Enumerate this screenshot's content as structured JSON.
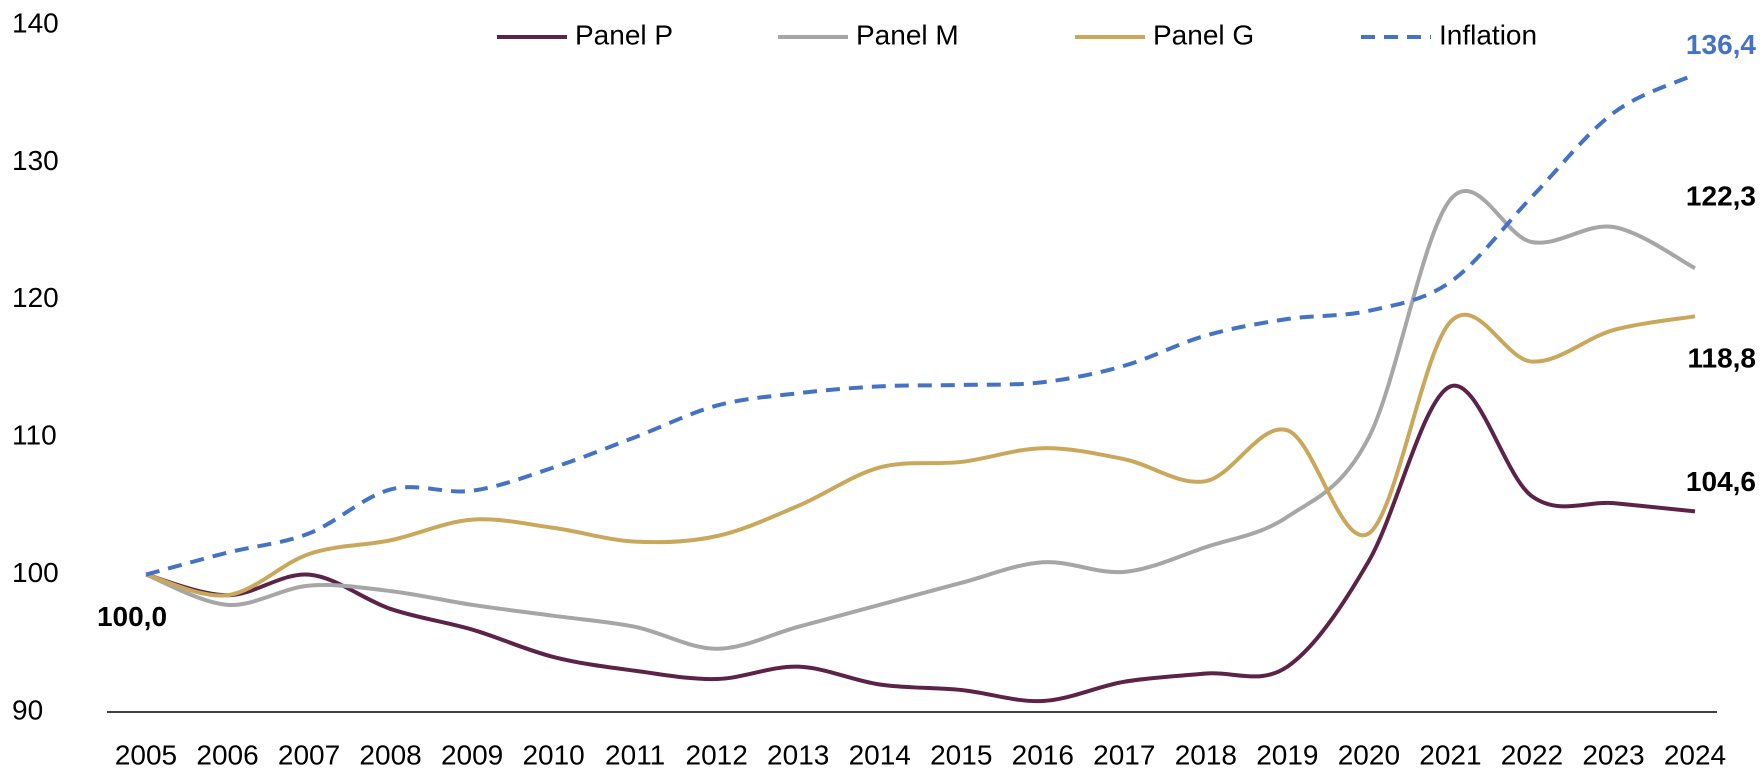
{
  "chart_data": {
    "type": "line",
    "categories": [
      "2005",
      "2006",
      "2007",
      "2008",
      "2009",
      "2010",
      "2011",
      "2012",
      "2013",
      "2014",
      "2015",
      "2016",
      "2017",
      "2018",
      "2019",
      "2020",
      "2021",
      "2022",
      "2023",
      "2024"
    ],
    "series": [
      {
        "name": "Panel P",
        "color": "#5c2349",
        "dash": false,
        "values": [
          100,
          98.5,
          100,
          97.5,
          96,
          94,
          93,
          92.4,
          93.3,
          92,
          91.6,
          90.8,
          92.2,
          92.8,
          93.3,
          101,
          113.7,
          105.7,
          105.2,
          104.6
        ],
        "value_labels": [
          "100,0",
          null,
          null,
          null,
          null,
          null,
          null,
          null,
          null,
          null,
          null,
          null,
          null,
          null,
          null,
          null,
          null,
          null,
          null,
          "104,6"
        ]
      },
      {
        "name": "Panel M",
        "color": "#a6a6a6",
        "dash": false,
        "values": [
          100,
          97.8,
          99.2,
          98.8,
          97.8,
          97,
          96.2,
          94.6,
          96.2,
          97.8,
          99.4,
          100.9,
          100.2,
          102,
          104.2,
          110,
          127.3,
          124.2,
          125.3,
          122.3
        ],
        "value_labels": [
          null,
          null,
          null,
          null,
          null,
          null,
          null,
          null,
          null,
          null,
          null,
          null,
          null,
          null,
          null,
          null,
          null,
          null,
          null,
          "122,3"
        ]
      },
      {
        "name": "Panel G",
        "color": "#c9a85c",
        "dash": false,
        "values": [
          100,
          98.5,
          101.5,
          102.5,
          104,
          103.4,
          102.4,
          102.8,
          105,
          107.8,
          108.2,
          109.2,
          108.4,
          106.8,
          110.5,
          103,
          118.4,
          115.5,
          117.8,
          118.8
        ],
        "value_labels": [
          null,
          null,
          null,
          null,
          null,
          null,
          null,
          null,
          null,
          null,
          null,
          null,
          null,
          null,
          null,
          null,
          null,
          null,
          null,
          "118,8"
        ]
      },
      {
        "name": "Inflation",
        "color": "#4472c4",
        "dash": true,
        "values": [
          100,
          101.6,
          103,
          106.2,
          106.1,
          107.8,
          110,
          112.3,
          113.2,
          113.7,
          113.8,
          114,
          115.2,
          117.4,
          118.6,
          119.2,
          121.3,
          127.5,
          133.6,
          136.4
        ],
        "value_labels": [
          null,
          null,
          null,
          null,
          null,
          null,
          null,
          null,
          null,
          null,
          null,
          null,
          null,
          null,
          null,
          null,
          null,
          null,
          null,
          "136,4"
        ]
      }
    ],
    "ylim": [
      90,
      140
    ],
    "yticks": [
      90,
      100,
      110,
      120,
      130,
      140
    ],
    "grid": false,
    "legend": "top"
  }
}
